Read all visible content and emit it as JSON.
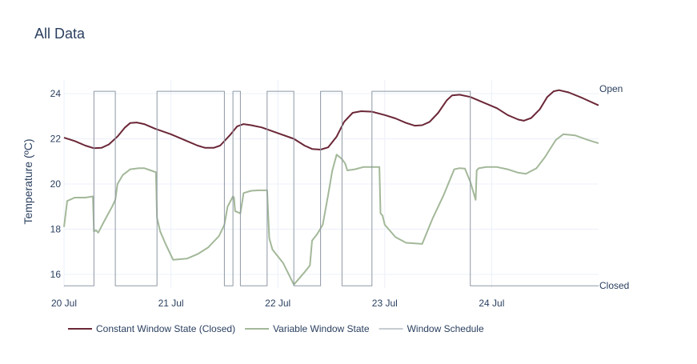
{
  "chart_data": {
    "type": "line",
    "title": "All Data",
    "ylabel": "Temperature (ºC)",
    "xlabel": "",
    "ylim": [
      15.4,
      24.6
    ],
    "xlim": [
      0,
      5
    ],
    "x_ticks": [
      {
        "label": "20 Jul",
        "value": 0
      },
      {
        "label": "21 Jul",
        "value": 1
      },
      {
        "label": "22 Jul",
        "value": 2
      },
      {
        "label": "23 Jul",
        "value": 3
      },
      {
        "label": "24 Jul",
        "value": 4
      }
    ],
    "y_ticks": [
      16,
      18,
      20,
      22,
      24
    ],
    "grid": true,
    "legend_position": "bottom",
    "schedule_labels": {
      "open": "Open",
      "closed": "Closed"
    },
    "schedule_levels": {
      "open": 24.1,
      "closed": 15.5
    },
    "series": [
      {
        "name": "Constant Window State (Closed)",
        "color": "#6b2737",
        "style": "solid",
        "points": [
          [
            0.0,
            22.05
          ],
          [
            0.1,
            21.9
          ],
          [
            0.2,
            21.7
          ],
          [
            0.28,
            21.58
          ],
          [
            0.35,
            21.6
          ],
          [
            0.42,
            21.75
          ],
          [
            0.5,
            22.1
          ],
          [
            0.57,
            22.5
          ],
          [
            0.62,
            22.7
          ],
          [
            0.68,
            22.72
          ],
          [
            0.75,
            22.65
          ],
          [
            0.85,
            22.45
          ],
          [
            1.0,
            22.2
          ],
          [
            1.15,
            21.9
          ],
          [
            1.25,
            21.7
          ],
          [
            1.32,
            21.6
          ],
          [
            1.4,
            21.6
          ],
          [
            1.46,
            21.7
          ],
          [
            1.55,
            22.15
          ],
          [
            1.62,
            22.55
          ],
          [
            1.68,
            22.65
          ],
          [
            1.75,
            22.6
          ],
          [
            1.85,
            22.5
          ],
          [
            2.0,
            22.25
          ],
          [
            2.15,
            22.0
          ],
          [
            2.25,
            21.7
          ],
          [
            2.32,
            21.55
          ],
          [
            2.4,
            21.52
          ],
          [
            2.47,
            21.62
          ],
          [
            2.55,
            22.1
          ],
          [
            2.62,
            22.75
          ],
          [
            2.7,
            23.15
          ],
          [
            2.78,
            23.22
          ],
          [
            2.88,
            23.2
          ],
          [
            3.0,
            23.05
          ],
          [
            3.1,
            22.9
          ],
          [
            3.2,
            22.7
          ],
          [
            3.28,
            22.58
          ],
          [
            3.35,
            22.6
          ],
          [
            3.42,
            22.75
          ],
          [
            3.5,
            23.15
          ],
          [
            3.58,
            23.7
          ],
          [
            3.63,
            23.92
          ],
          [
            3.7,
            23.95
          ],
          [
            3.8,
            23.85
          ],
          [
            3.9,
            23.65
          ],
          [
            4.05,
            23.35
          ],
          [
            4.15,
            23.05
          ],
          [
            4.25,
            22.85
          ],
          [
            4.3,
            22.8
          ],
          [
            4.37,
            22.92
          ],
          [
            4.45,
            23.3
          ],
          [
            4.52,
            23.85
          ],
          [
            4.58,
            24.1
          ],
          [
            4.63,
            24.15
          ],
          [
            4.72,
            24.05
          ],
          [
            4.85,
            23.8
          ],
          [
            5.0,
            23.48
          ]
        ]
      },
      {
        "name": "Variable Window State",
        "color": "#a3b899",
        "style": "solid",
        "points": [
          [
            0.0,
            18.1
          ],
          [
            0.03,
            19.25
          ],
          [
            0.1,
            19.4
          ],
          [
            0.2,
            19.4
          ],
          [
            0.27,
            19.45
          ],
          [
            0.28,
            17.9
          ],
          [
            0.3,
            17.95
          ],
          [
            0.32,
            17.85
          ],
          [
            0.37,
            18.3
          ],
          [
            0.45,
            19.0
          ],
          [
            0.48,
            19.3
          ],
          [
            0.5,
            20.0
          ],
          [
            0.55,
            20.4
          ],
          [
            0.62,
            20.65
          ],
          [
            0.7,
            20.7
          ],
          [
            0.75,
            20.7
          ],
          [
            0.8,
            20.62
          ],
          [
            0.86,
            20.52
          ],
          [
            0.87,
            18.5
          ],
          [
            0.9,
            17.9
          ],
          [
            0.95,
            17.35
          ],
          [
            1.02,
            16.65
          ],
          [
            1.15,
            16.7
          ],
          [
            1.25,
            16.9
          ],
          [
            1.35,
            17.2
          ],
          [
            1.45,
            17.7
          ],
          [
            1.5,
            18.2
          ],
          [
            1.53,
            19.0
          ],
          [
            1.58,
            19.45
          ],
          [
            1.59,
            19.4
          ],
          [
            1.6,
            18.8
          ],
          [
            1.65,
            18.7
          ],
          [
            1.68,
            19.6
          ],
          [
            1.75,
            19.7
          ],
          [
            1.82,
            19.72
          ],
          [
            1.9,
            19.72
          ],
          [
            1.92,
            17.6
          ],
          [
            1.95,
            17.1
          ],
          [
            2.05,
            16.5
          ],
          [
            2.15,
            15.55
          ],
          [
            2.25,
            16.1
          ],
          [
            2.3,
            16.4
          ],
          [
            2.32,
            17.5
          ],
          [
            2.37,
            17.8
          ],
          [
            2.42,
            18.2
          ],
          [
            2.47,
            19.5
          ],
          [
            2.51,
            20.6
          ],
          [
            2.55,
            21.3
          ],
          [
            2.6,
            21.1
          ],
          [
            2.63,
            20.9
          ],
          [
            2.65,
            20.6
          ],
          [
            2.72,
            20.65
          ],
          [
            2.8,
            20.75
          ],
          [
            2.95,
            20.75
          ],
          [
            2.96,
            18.7
          ],
          [
            2.98,
            18.6
          ],
          [
            3.0,
            18.2
          ],
          [
            3.1,
            17.65
          ],
          [
            3.2,
            17.4
          ],
          [
            3.35,
            17.35
          ],
          [
            3.45,
            18.5
          ],
          [
            3.55,
            19.5
          ],
          [
            3.65,
            20.65
          ],
          [
            3.7,
            20.7
          ],
          [
            3.75,
            20.68
          ],
          [
            3.8,
            20.1
          ],
          [
            3.85,
            19.3
          ],
          [
            3.86,
            20.6
          ],
          [
            3.88,
            20.7
          ],
          [
            3.95,
            20.75
          ],
          [
            4.05,
            20.75
          ],
          [
            4.15,
            20.65
          ],
          [
            4.25,
            20.5
          ],
          [
            4.32,
            20.45
          ],
          [
            4.42,
            20.7
          ],
          [
            4.5,
            21.2
          ],
          [
            4.6,
            21.95
          ],
          [
            4.67,
            22.2
          ],
          [
            4.78,
            22.15
          ],
          [
            4.9,
            21.95
          ],
          [
            5.0,
            21.8
          ]
        ]
      },
      {
        "name": "Window Schedule",
        "color": "#8e98a4",
        "style": "step",
        "points": [
          [
            0.0,
            15.5
          ],
          [
            0.28,
            15.5
          ],
          [
            0.28,
            24.1
          ],
          [
            0.48,
            24.1
          ],
          [
            0.48,
            15.5
          ],
          [
            0.87,
            15.5
          ],
          [
            0.87,
            24.1
          ],
          [
            1.5,
            24.1
          ],
          [
            1.5,
            15.5
          ],
          [
            1.58,
            15.5
          ],
          [
            1.58,
            24.1
          ],
          [
            1.65,
            24.1
          ],
          [
            1.65,
            15.5
          ],
          [
            1.9,
            15.5
          ],
          [
            1.9,
            24.1
          ],
          [
            2.15,
            24.1
          ],
          [
            2.15,
            15.5
          ],
          [
            2.4,
            15.5
          ],
          [
            2.4,
            24.1
          ],
          [
            2.6,
            24.1
          ],
          [
            2.6,
            15.5
          ],
          [
            2.88,
            15.5
          ],
          [
            2.88,
            24.1
          ],
          [
            3.8,
            24.1
          ],
          [
            3.8,
            15.5
          ],
          [
            5.0,
            15.5
          ]
        ]
      }
    ]
  }
}
